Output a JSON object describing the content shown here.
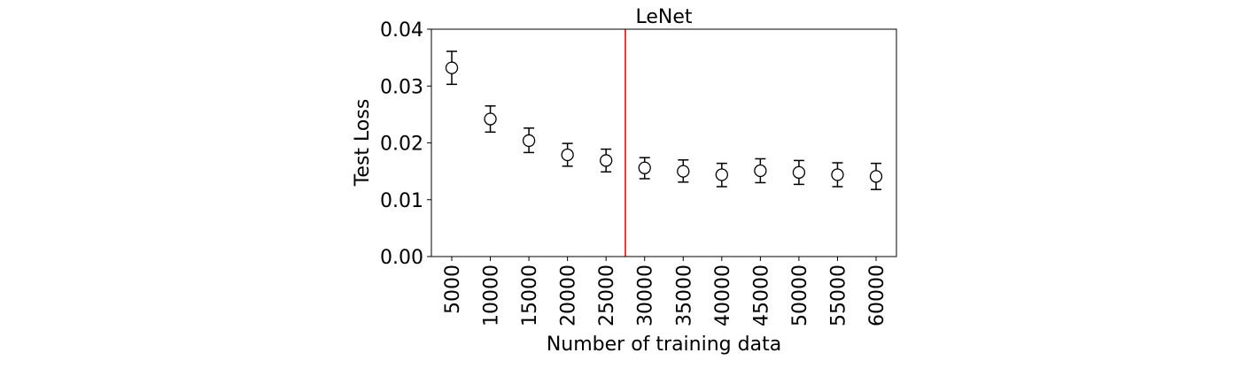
{
  "chart_data": {
    "type": "scatter",
    "title": "LeNet",
    "xlabel": "Number of training data",
    "ylabel": "Test Loss",
    "categories": [
      "5000",
      "10000",
      "15000",
      "20000",
      "25000",
      "30000",
      "35000",
      "40000",
      "45000",
      "50000",
      "55000",
      "60000"
    ],
    "values": [
      0.0332,
      0.0242,
      0.0204,
      0.0179,
      0.0169,
      0.0156,
      0.015,
      0.0144,
      0.0151,
      0.0148,
      0.0144,
      0.0141
    ],
    "error_low": [
      0.0303,
      0.0219,
      0.0183,
      0.0159,
      0.0149,
      0.0137,
      0.0131,
      0.0123,
      0.013,
      0.0127,
      0.0123,
      0.0118
    ],
    "error_high": [
      0.0361,
      0.0265,
      0.0226,
      0.0199,
      0.0189,
      0.0174,
      0.017,
      0.0164,
      0.0172,
      0.0169,
      0.0165,
      0.0164
    ],
    "ylim": [
      0,
      0.04
    ],
    "yticks": [
      "0.00",
      "0.01",
      "0.02",
      "0.03",
      "0.04"
    ],
    "vertical_line": {
      "x": 27500,
      "color": "#ff0000"
    },
    "marker": "open-circle",
    "grid": false,
    "colors": {
      "marker": "#000000",
      "line": "#ff0000"
    }
  }
}
